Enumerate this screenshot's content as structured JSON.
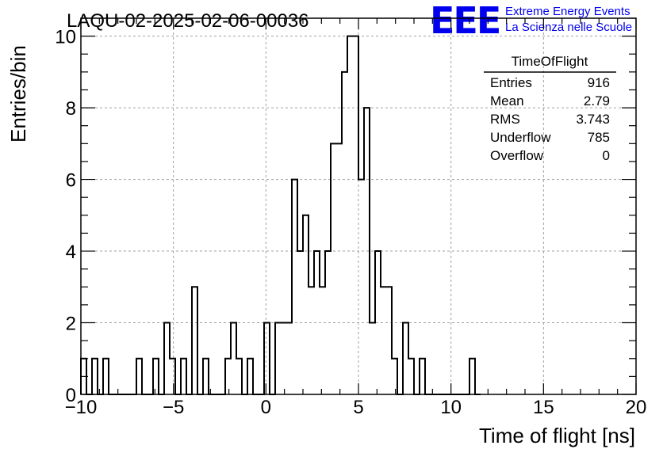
{
  "chart_data": {
    "type": "bar",
    "style": "step-histogram",
    "title": "LAQU-02-2025-02-06-00036",
    "xlabel": "Time of flight [ns]",
    "ylabel": "Entries/bin",
    "xlim": [
      -10,
      20
    ],
    "ylim": [
      0,
      10.5
    ],
    "x_ticks": [
      -10,
      -5,
      0,
      5,
      10,
      15,
      20
    ],
    "y_ticks": [
      0,
      2,
      4,
      6,
      8,
      10
    ],
    "grid": true,
    "bin_width": 0.3,
    "bins": [
      [
        -10.0,
        1
      ],
      [
        -9.7,
        0
      ],
      [
        -9.4,
        1
      ],
      [
        -9.1,
        0
      ],
      [
        -8.8,
        1
      ],
      [
        -8.5,
        0
      ],
      [
        -8.2,
        0
      ],
      [
        -7.9,
        0
      ],
      [
        -7.6,
        0
      ],
      [
        -7.3,
        0
      ],
      [
        -7.0,
        1
      ],
      [
        -6.7,
        0
      ],
      [
        -6.4,
        0
      ],
      [
        -6.1,
        1
      ],
      [
        -5.8,
        0
      ],
      [
        -5.5,
        2
      ],
      [
        -5.2,
        1
      ],
      [
        -4.9,
        0
      ],
      [
        -4.6,
        1
      ],
      [
        -4.3,
        0
      ],
      [
        -4.0,
        3
      ],
      [
        -3.7,
        0
      ],
      [
        -3.4,
        1
      ],
      [
        -3.1,
        0
      ],
      [
        -2.8,
        0
      ],
      [
        -2.5,
        0
      ],
      [
        -2.2,
        1
      ],
      [
        -1.9,
        2
      ],
      [
        -1.6,
        1
      ],
      [
        -1.3,
        0
      ],
      [
        -1.0,
        1
      ],
      [
        -0.7,
        0
      ],
      [
        -0.4,
        0
      ],
      [
        -0.1,
        2
      ],
      [
        0.2,
        0
      ],
      [
        0.5,
        2
      ],
      [
        0.8,
        2
      ],
      [
        1.1,
        2
      ],
      [
        1.4,
        6
      ],
      [
        1.7,
        4
      ],
      [
        2.0,
        5
      ],
      [
        2.3,
        3
      ],
      [
        2.6,
        4
      ],
      [
        2.9,
        3
      ],
      [
        3.2,
        4
      ],
      [
        3.5,
        7
      ],
      [
        3.8,
        7
      ],
      [
        4.1,
        9
      ],
      [
        4.4,
        10
      ],
      [
        4.7,
        10
      ],
      [
        5.0,
        6
      ],
      [
        5.3,
        8
      ],
      [
        5.6,
        2
      ],
      [
        5.9,
        4
      ],
      [
        6.2,
        3
      ],
      [
        6.5,
        3
      ],
      [
        6.8,
        1
      ],
      [
        7.1,
        0
      ],
      [
        7.4,
        2
      ],
      [
        7.7,
        1
      ],
      [
        8.0,
        0
      ],
      [
        8.3,
        1
      ],
      [
        8.6,
        0
      ],
      [
        8.9,
        0
      ],
      [
        9.2,
        0
      ],
      [
        9.5,
        0
      ],
      [
        9.8,
        0
      ],
      [
        10.1,
        0
      ],
      [
        10.4,
        0
      ],
      [
        10.7,
        0
      ],
      [
        11.0,
        1
      ],
      [
        11.3,
        0
      ]
    ],
    "stats_box": {
      "title": "TimeOfFlight",
      "rows": [
        {
          "label": "Entries",
          "value": "916"
        },
        {
          "label": "Mean",
          "value": "2.79"
        },
        {
          "label": "RMS",
          "value": "3.743"
        },
        {
          "label": "Underflow",
          "value": "785"
        },
        {
          "label": "Overflow",
          "value": "0"
        }
      ]
    },
    "logo": {
      "letters": "EEE",
      "line1": "Extreme Energy Events",
      "line2": "La Scienza nelle Scuole",
      "color": "#0000ee"
    },
    "line_color": "#000000",
    "grid_color": "#a0a0a0"
  }
}
